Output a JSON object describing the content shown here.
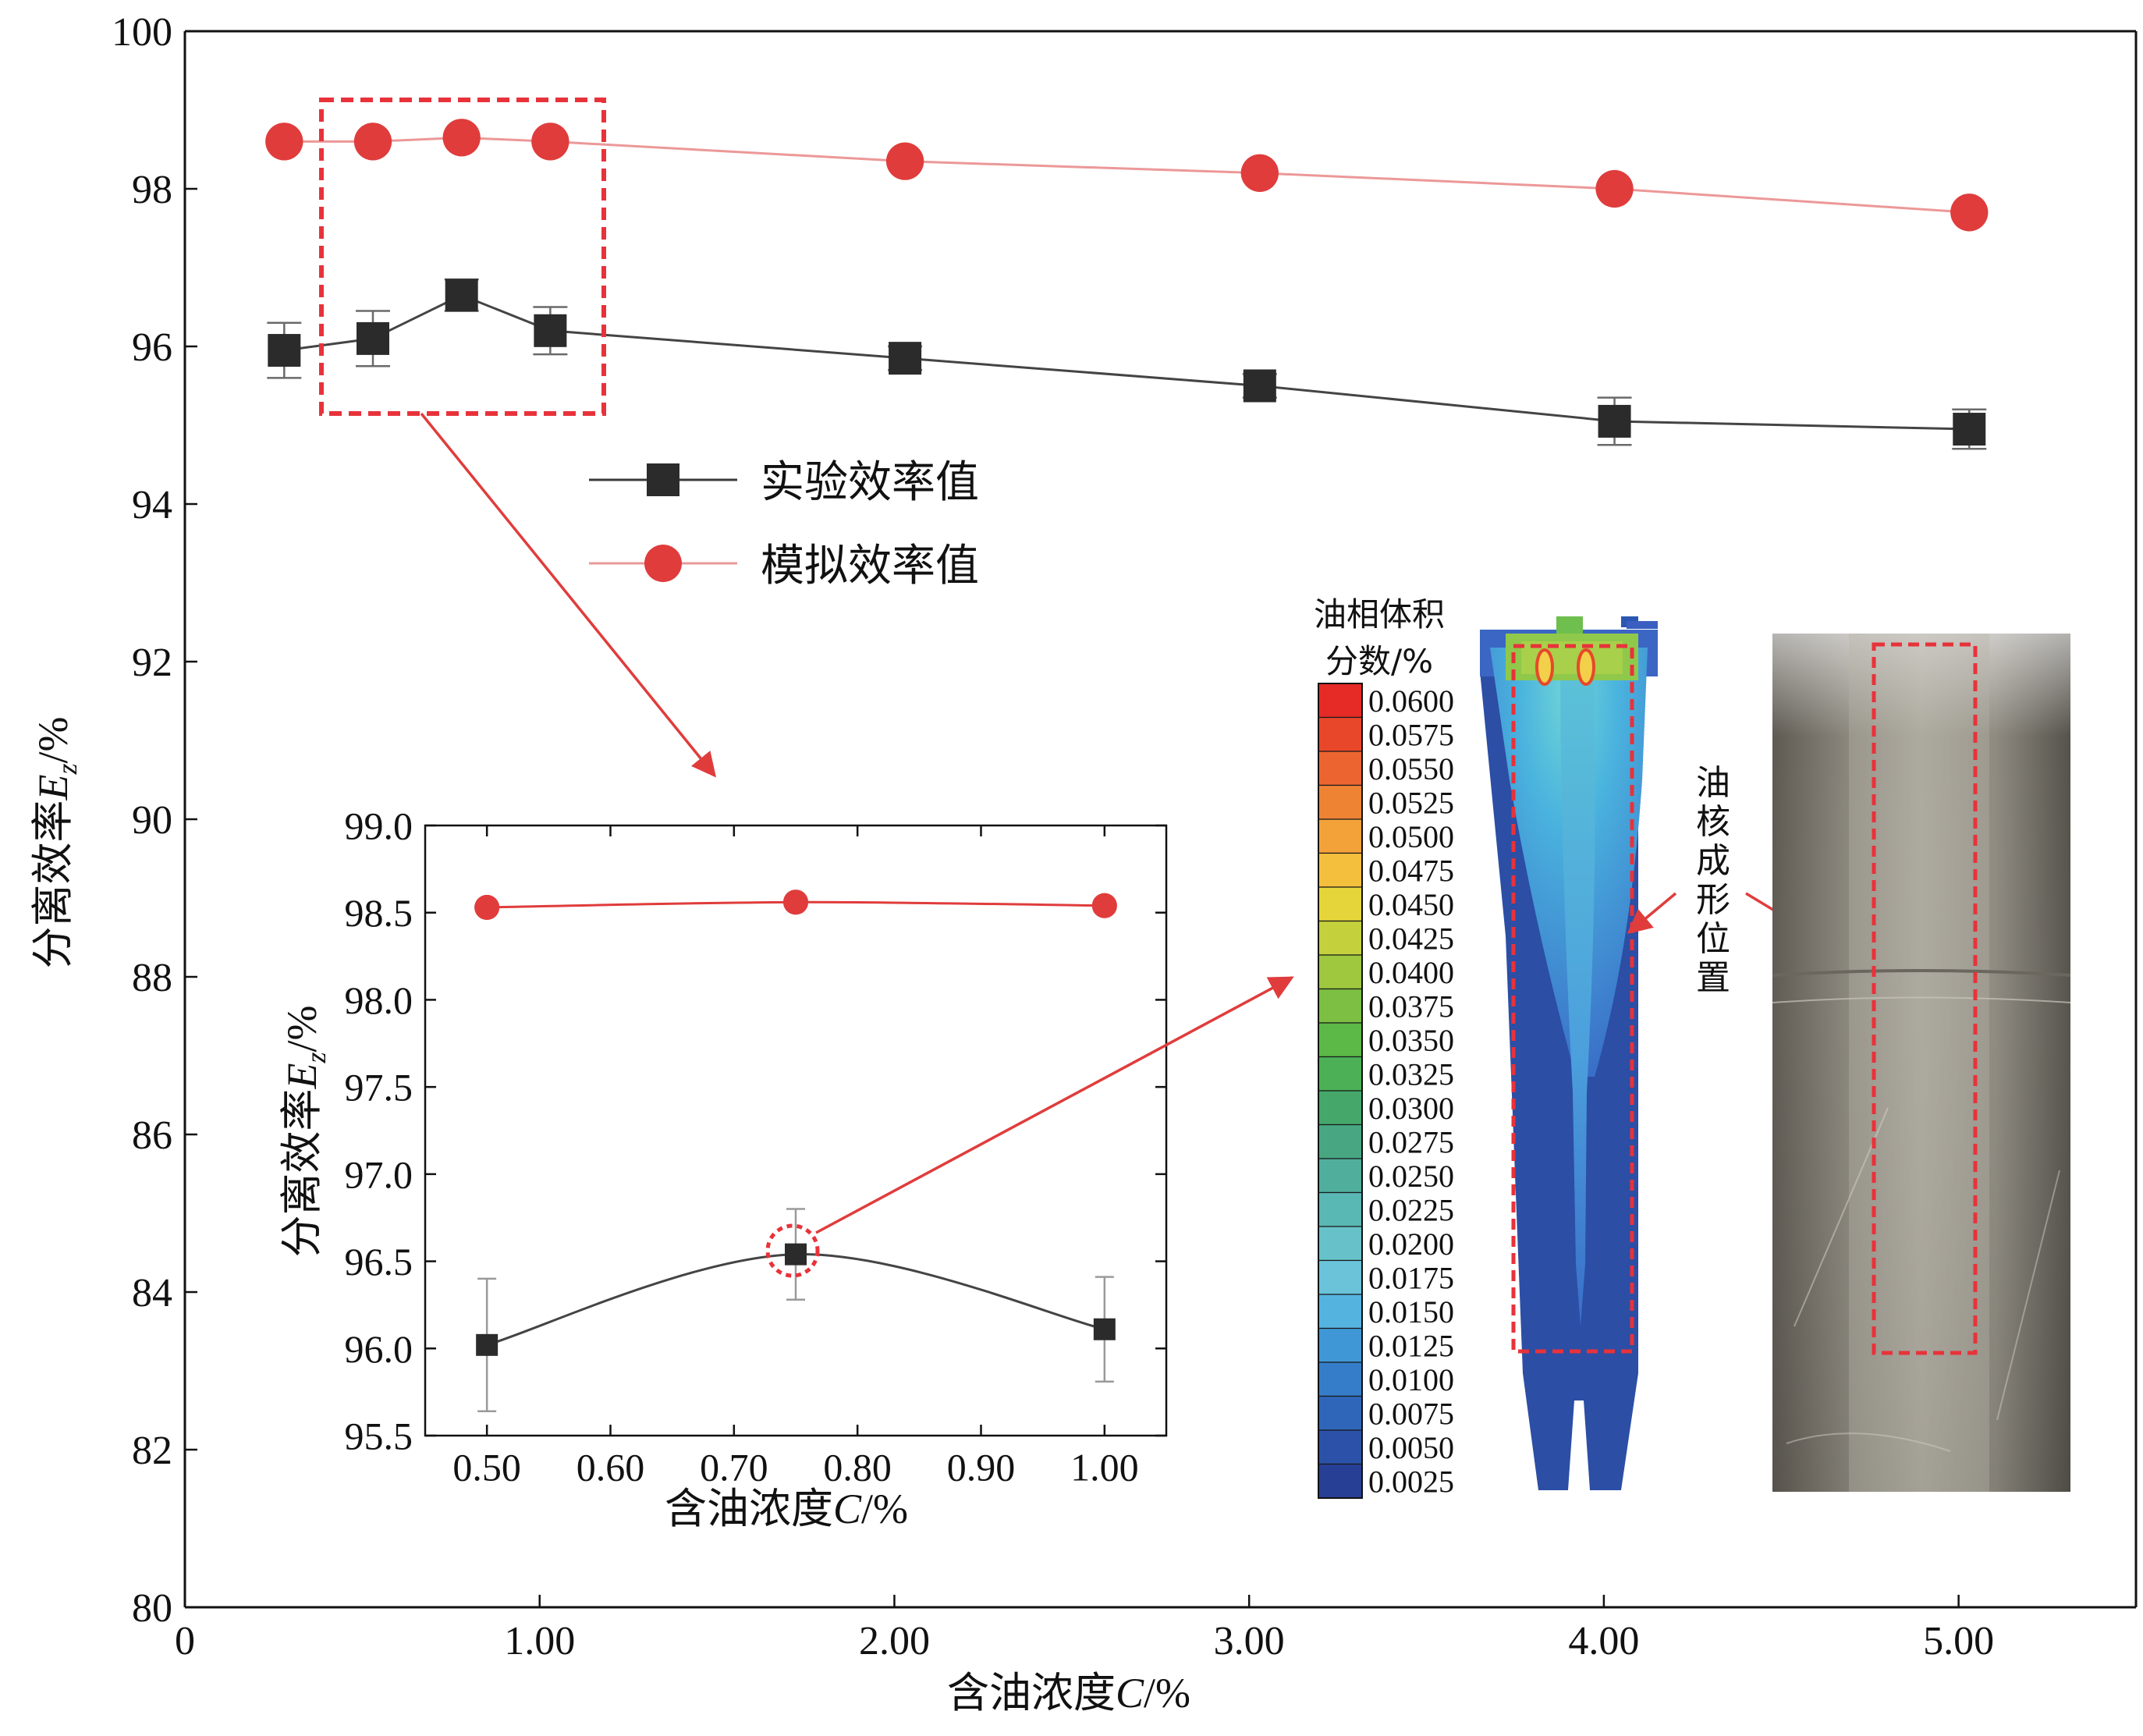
{
  "chart_data": [
    {
      "type": "line",
      "xlabel_prefix": "含油浓度",
      "xlabel_var": "C",
      "xlabel_unit": "/%",
      "ylabel_prefix": "分离效率",
      "ylabel_var": "E",
      "ylabel_sub": "z",
      "ylabel_unit": "/%",
      "xlim": [
        0,
        5.5
      ],
      "ylim": [
        80,
        100
      ],
      "xticks": [
        0,
        1,
        2,
        3,
        4,
        5
      ],
      "xtick_labels": [
        "0",
        "1.00",
        "2.00",
        "3.00",
        "4.00",
        "5.00"
      ],
      "yticks": [
        80,
        82,
        84,
        86,
        88,
        90,
        92,
        94,
        96,
        98,
        100
      ],
      "ytick_labels": [
        "80",
        "82",
        "84",
        "86",
        "88",
        "90",
        "92",
        "94",
        "96",
        "98",
        "100"
      ],
      "legend_placement": "upper-middle",
      "series": [
        {
          "name": "实验效率值",
          "marker": "square",
          "color": "#3a3a3a",
          "x": [
            0.28,
            0.53,
            0.78,
            1.03,
            2.03,
            3.03,
            4.03,
            5.03
          ],
          "y": [
            95.95,
            96.1,
            96.65,
            96.2,
            95.85,
            95.5,
            95.05,
            94.95
          ],
          "error": [
            0.35,
            0.35,
            0.2,
            0.3,
            0.15,
            0.15,
            0.3,
            0.25
          ]
        },
        {
          "name": "模拟效率值",
          "marker": "circle",
          "color": "#e03c3c",
          "x": [
            0.28,
            0.53,
            0.78,
            1.03,
            2.03,
            3.03,
            4.03,
            5.03
          ],
          "y": [
            98.6,
            98.6,
            98.65,
            98.6,
            98.35,
            98.2,
            98.0,
            97.7
          ]
        }
      ]
    },
    {
      "type": "line",
      "xlabel_prefix": "含油浓度",
      "xlabel_var": "C",
      "xlabel_unit": "/%",
      "ylabel_prefix": "分离效率",
      "ylabel_var": "E",
      "ylabel_sub": "z",
      "ylabel_unit": "/%",
      "xlim": [
        0.45,
        1.05
      ],
      "ylim": [
        95.5,
        99.0
      ],
      "xticks": [
        0.5,
        0.6,
        0.7,
        0.8,
        0.9,
        1.0
      ],
      "xtick_labels": [
        "0.50",
        "0.60",
        "0.70",
        "0.80",
        "0.90",
        "1.00"
      ],
      "yticks": [
        95.5,
        96.0,
        96.5,
        97.0,
        97.5,
        98.0,
        98.5,
        99.0
      ],
      "ytick_labels": [
        "95.5",
        "96.0",
        "96.5",
        "97.0",
        "97.5",
        "98.0",
        "98.5",
        "99.0"
      ],
      "series": [
        {
          "marker": "square",
          "color": "#3a3a3a",
          "x": [
            0.5,
            0.75,
            1.0
          ],
          "y": [
            96.02,
            96.54,
            96.11
          ],
          "error": [
            0.38,
            0.26,
            0.3
          ]
        },
        {
          "marker": "circle",
          "color": "#e03c3c",
          "x": [
            0.5,
            0.75,
            1.0
          ],
          "y": [
            98.53,
            98.56,
            98.54
          ]
        }
      ]
    }
  ],
  "colorbar": {
    "title_line1": "油相体积",
    "title_line2": "分数/%",
    "labels": [
      "0.0600",
      "0.0575",
      "0.0550",
      "0.0525",
      "0.0500",
      "0.0475",
      "0.0450",
      "0.0425",
      "0.0400",
      "0.0375",
      "0.0350",
      "0.0325",
      "0.0300",
      "0.0275",
      "0.0250",
      "0.0225",
      "0.0200",
      "0.0175",
      "0.0150",
      "0.0125",
      "0.0100",
      "0.0075",
      "0.0050",
      "0.0025"
    ],
    "colors": [
      "#e62a26",
      "#e9472a",
      "#ec6530",
      "#ef8334",
      "#f3a23a",
      "#f5bf3e",
      "#e6d53a",
      "#c4d13c",
      "#9fc83f",
      "#7cbf42",
      "#5cb847",
      "#4cb156",
      "#45a86a",
      "#48a782",
      "#4fae9c",
      "#59b7b4",
      "#66c2c8",
      "#6ac3d9",
      "#55b3e0",
      "#3f97d6",
      "#357dc8",
      "#2f66b9",
      "#2b52a8",
      "#283f96"
    ]
  },
  "annotation": {
    "oil_core_chars": [
      "油",
      "核",
      "成",
      "形",
      "位",
      "置"
    ]
  },
  "colors": {
    "accent_red": "#e03c3c",
    "experiment_dark": "#3a3a3a",
    "dash_red": "#e8323a"
  }
}
